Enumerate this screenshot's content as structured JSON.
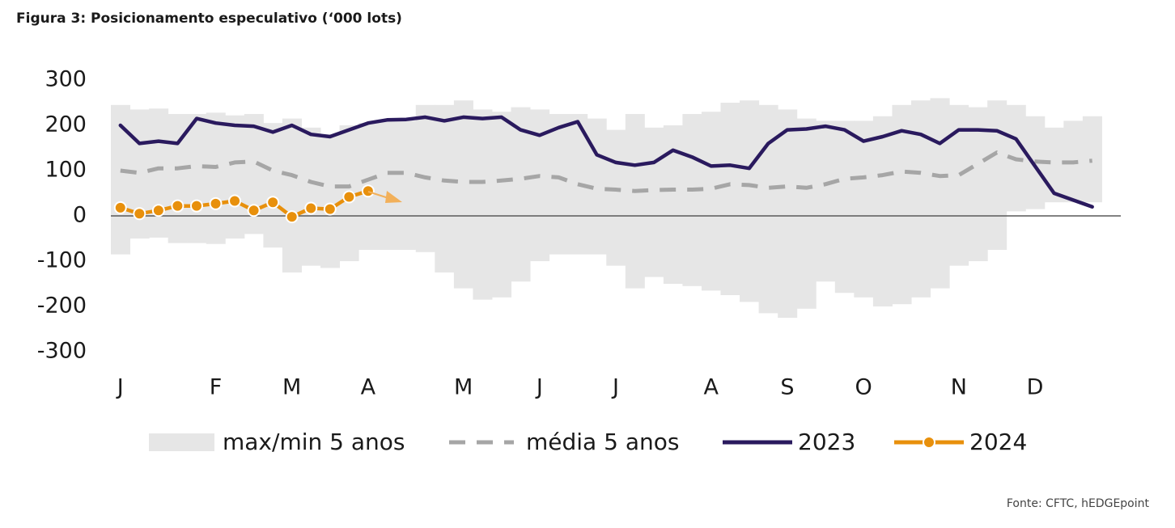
{
  "chart_data": {
    "type": "line",
    "title": "Figura 3: Posicionamento especulativo (‘000 lots)",
    "source": "Fonte: CFTC, hEDGEpoint",
    "x": [
      0,
      1,
      2,
      3,
      4,
      5,
      6,
      7,
      8,
      9,
      10,
      11,
      12,
      13,
      14,
      15,
      16,
      17,
      18,
      19,
      20,
      21,
      22,
      23,
      24,
      25,
      26,
      27,
      28,
      29,
      30,
      31,
      32,
      33,
      34,
      35,
      36,
      37,
      38,
      39,
      40,
      41,
      42,
      43,
      44,
      45,
      46,
      47,
      48,
      49,
      50,
      51
    ],
    "xlim": [
      -0.5,
      52.5
    ],
    "xticks": [
      {
        "value": 0,
        "label": "J"
      },
      {
        "value": 5,
        "label": "F"
      },
      {
        "value": 9,
        "label": "M"
      },
      {
        "value": 13,
        "label": "A"
      },
      {
        "value": 18,
        "label": "M"
      },
      {
        "value": 22,
        "label": "J"
      },
      {
        "value": 26,
        "label": "J"
      },
      {
        "value": 31,
        "label": "A"
      },
      {
        "value": 35,
        "label": "S"
      },
      {
        "value": 39,
        "label": "O"
      },
      {
        "value": 44,
        "label": "N"
      },
      {
        "value": 48,
        "label": "D"
      }
    ],
    "ylim": [
      -300,
      300
    ],
    "yticks": [
      300,
      200,
      100,
      0,
      -100,
      -200,
      -300
    ],
    "series": [
      {
        "name": "max/min 5 anos",
        "type": "band",
        "color": "#e6e6e6",
        "high": [
          245,
          235,
          237,
          225,
          225,
          228,
          222,
          225,
          205,
          215,
          195,
          180,
          200,
          205,
          210,
          210,
          245,
          245,
          255,
          235,
          230,
          240,
          235,
          225,
          225,
          215,
          190,
          225,
          195,
          200,
          225,
          230,
          250,
          255,
          245,
          235,
          215,
          210,
          210,
          210,
          220,
          245,
          255,
          260,
          245,
          240,
          255,
          245,
          220,
          195,
          210,
          220
        ],
        "low": [
          -85,
          -50,
          -48,
          -60,
          -60,
          -62,
          -50,
          -40,
          -70,
          -125,
          -110,
          -115,
          -100,
          -75,
          -75,
          -75,
          -80,
          -125,
          -160,
          -185,
          -180,
          -145,
          -100,
          -85,
          -85,
          -85,
          -110,
          -160,
          -135,
          -150,
          -155,
          -165,
          -175,
          -190,
          -215,
          -225,
          -205,
          -145,
          -170,
          -180,
          -200,
          -195,
          -180,
          -160,
          -110,
          -100,
          -75,
          10,
          15,
          30,
          30,
          30
        ]
      },
      {
        "name": "média 5 anos",
        "type": "dashed",
        "color": "#a6a6a6",
        "values": [
          100,
          95,
          105,
          105,
          110,
          108,
          118,
          120,
          100,
          90,
          75,
          65,
          65,
          80,
          95,
          95,
          85,
          78,
          75,
          75,
          78,
          82,
          88,
          85,
          70,
          60,
          58,
          55,
          57,
          58,
          58,
          60,
          70,
          68,
          62,
          65,
          62,
          70,
          82,
          85,
          90,
          98,
          95,
          88,
          90,
          115,
          140,
          125,
          120,
          118,
          118,
          122
        ]
      },
      {
        "name": "2023",
        "type": "line",
        "color": "#2a1a5e",
        "values": [
          200,
          160,
          165,
          160,
          215,
          205,
          200,
          198,
          185,
          200,
          180,
          175,
          190,
          205,
          212,
          213,
          218,
          210,
          218,
          215,
          218,
          190,
          178,
          195,
          208,
          135,
          118,
          112,
          118,
          145,
          130,
          110,
          112,
          105,
          160,
          190,
          192,
          198,
          190,
          165,
          175,
          188,
          180,
          160,
          190,
          190,
          188,
          170,
          110,
          50,
          35,
          20
        ]
      },
      {
        "name": "2024",
        "type": "line-markers",
        "color": "#e8900c",
        "values": [
          18,
          5,
          12,
          22,
          22,
          27,
          33,
          12,
          30,
          -2,
          17,
          15,
          42,
          55,
          null,
          null,
          null,
          null,
          null,
          null,
          null,
          null,
          null,
          null,
          null,
          null,
          null,
          null,
          null,
          null,
          null,
          null,
          null,
          null,
          null,
          null,
          null,
          null,
          null,
          null,
          null,
          null,
          null,
          null,
          null,
          null,
          null,
          null,
          null,
          null,
          null,
          null
        ]
      }
    ]
  }
}
